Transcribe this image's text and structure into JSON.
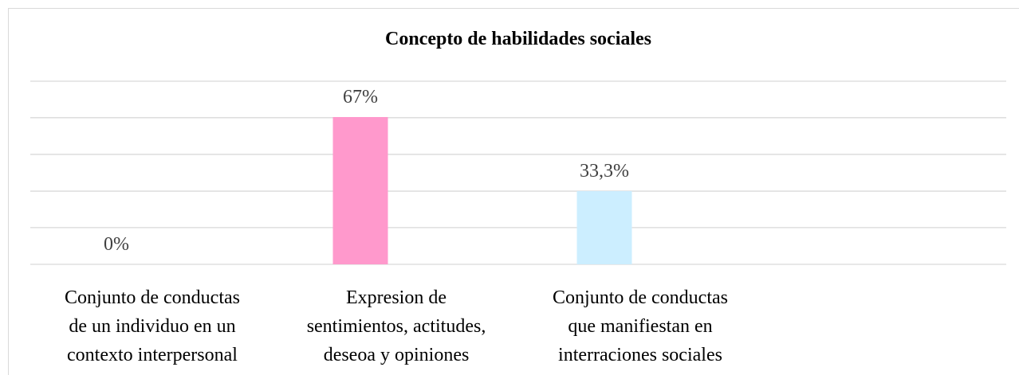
{
  "chart_data": {
    "type": "bar",
    "title": "Concepto de habilidades sociales",
    "categories": [
      [
        "Conjunto de conductas",
        "de un individuo en un",
        "contexto interpersonal"
      ],
      [
        "Expresion de",
        "sentimientos, actitudes,",
        "deseoa y opiniones"
      ],
      [
        "Conjunto de conductas",
        "que manifiestan en",
        "interraciones sociales"
      ]
    ],
    "values": [
      0,
      67,
      33.3
    ],
    "value_labels": [
      "0%",
      "67%",
      "33,3%"
    ],
    "colors": [
      "#ff99cc",
      "#ff99cc",
      "#cceeff"
    ],
    "ylim": [
      0,
      83.3
    ],
    "yticks": [
      0,
      16.7,
      33.3,
      50,
      66.7,
      83.3
    ],
    "grid": true
  }
}
